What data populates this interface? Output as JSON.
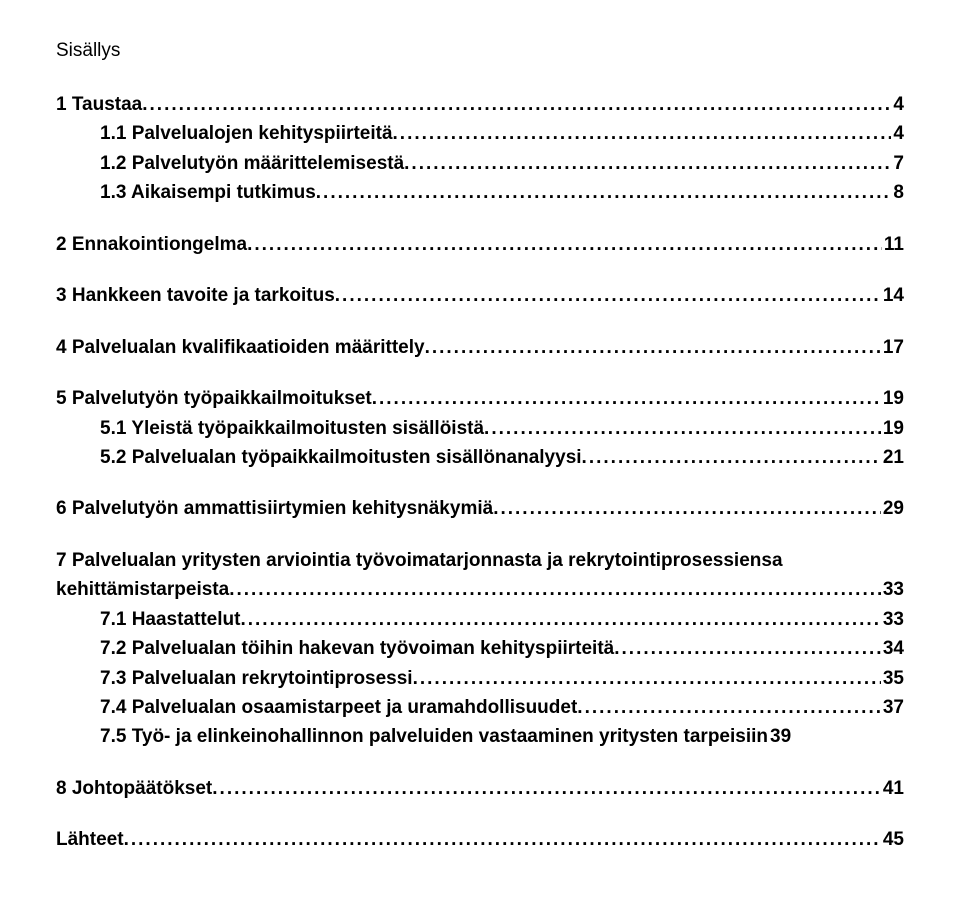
{
  "title": "Sisällys",
  "entries": [
    {
      "section": true,
      "items": [
        {
          "label": "1 Taustaa",
          "page": "4",
          "indent": 0
        },
        {
          "label": "1.1 Palvelualojen kehityspiirteitä",
          "page": "4",
          "indent": 1
        },
        {
          "label": "1.2 Palvelutyön määrittelemisestä",
          "page": "7",
          "indent": 1
        },
        {
          "label": "1.3 Aikaisempi tutkimus",
          "page": "8",
          "indent": 1
        }
      ]
    },
    {
      "section": true,
      "items": [
        {
          "label": "2 Ennakointiongelma",
          "page": "11",
          "indent": 0
        }
      ]
    },
    {
      "section": true,
      "items": [
        {
          "label": "3 Hankkeen tavoite ja tarkoitus",
          "page": "14",
          "indent": 0
        }
      ]
    },
    {
      "section": true,
      "items": [
        {
          "label": "4 Palvelualan kvalifikaatioiden määrittely",
          "page": "17",
          "indent": 0
        }
      ]
    },
    {
      "section": true,
      "items": [
        {
          "label": "5 Palvelutyön työpaikkailmoitukset",
          "page": "19",
          "indent": 0
        },
        {
          "label": "5.1 Yleistä työpaikkailmoitusten sisällöistä",
          "page": "19",
          "indent": 1
        },
        {
          "label": "5.2 Palvelualan työpaikkailmoitusten sisällönanalyysi",
          "page": "21",
          "indent": 1
        }
      ]
    },
    {
      "section": true,
      "items": [
        {
          "label": "6 Palvelutyön ammattisiirtymien kehitysnäkymiä",
          "page": "29",
          "indent": 0
        }
      ]
    },
    {
      "section": true,
      "items": [
        {
          "label": "7 Palvelualan yritysten arviointia työvoimatarjonnasta ja rekrytointiprosessiensa kehittämistarpeista",
          "page": "33",
          "indent": 0,
          "wrap": true
        },
        {
          "label": "7.1 Haastattelut",
          "page": "33",
          "indent": 1
        },
        {
          "label": "7.2 Palvelualan töihin hakevan työvoiman kehityspiirteitä",
          "page": "34",
          "indent": 1
        },
        {
          "label": "7.3 Palvelualan rekrytointiprosessi",
          "page": "35",
          "indent": 1
        },
        {
          "label": "7.4 Palvelualan osaamistarpeet ja uramahdollisuudet",
          "page": "37",
          "indent": 1
        },
        {
          "label": "7.5 Työ- ja elinkeinohallinnon palveluiden vastaaminen yritysten tarpeisiin",
          "page": "39",
          "indent": 1,
          "nodots": true
        }
      ]
    },
    {
      "section": true,
      "items": [
        {
          "label": "8 Johtopäätökset",
          "page": "41",
          "indent": 0
        }
      ]
    },
    {
      "section": true,
      "items": [
        {
          "label": "Lähteet",
          "page": "45",
          "indent": 0
        }
      ]
    }
  ]
}
